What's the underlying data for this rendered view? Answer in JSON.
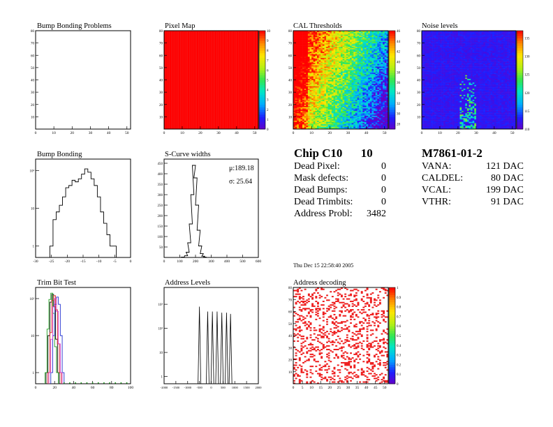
{
  "chip_summary": {
    "title": "Chip C10",
    "chip_number": "10",
    "rows": [
      {
        "label": "Dead Pixel:",
        "value": "0"
      },
      {
        "label": "Mask defects:",
        "value": "0"
      },
      {
        "label": "Dead Bumps:",
        "value": "0"
      },
      {
        "label": "Dead Trimbits:",
        "value": "0"
      },
      {
        "label": "Address Probl:",
        "value": "3482"
      }
    ]
  },
  "module_summary": {
    "title": "M7861-01-2",
    "rows": [
      {
        "label": "VANA:",
        "value": "121 DAC"
      },
      {
        "label": "CALDEL:",
        "value": "80 DAC"
      },
      {
        "label": "VCAL:",
        "value": "199 DAC"
      },
      {
        "label": "VTHR:",
        "value": "91 DAC"
      }
    ]
  },
  "timestamp": "Thu Dec 15 22:58:40 2005",
  "chart_data": [
    {
      "id": "bump-bonding-problems",
      "type": "heatmap",
      "title": "Bump Bonding Problems",
      "xlim": [
        0,
        52
      ],
      "ylim": [
        0,
        80
      ],
      "x_ticks": [
        "0",
        "10",
        "20",
        "30",
        "40",
        "50"
      ],
      "y_ticks": [
        "10",
        "20",
        "30",
        "40",
        "50",
        "60",
        "70",
        "80"
      ],
      "cells": "none"
    },
    {
      "id": "pixel-map",
      "type": "heatmap",
      "title": "Pixel Map",
      "xlim": [
        0,
        52
      ],
      "ylim": [
        0,
        80
      ],
      "x_ticks": [
        "0",
        "10",
        "20",
        "30",
        "40",
        "50"
      ],
      "y_ticks": [
        "10",
        "20",
        "30",
        "40",
        "50",
        "60",
        "70",
        "80"
      ],
      "uniform_value": 10,
      "zlim": [
        0,
        10
      ],
      "z_ticks": [
        "0",
        "1",
        "2",
        "3",
        "4",
        "5",
        "6",
        "7",
        "8",
        "9",
        "10"
      ]
    },
    {
      "id": "cal-thresholds",
      "type": "heatmap",
      "title": "CAL Thresholds",
      "xlim": [
        0,
        52
      ],
      "ylim": [
        0,
        80
      ],
      "x_ticks": [
        "0",
        "10",
        "20",
        "30",
        "40",
        "50"
      ],
      "y_ticks": [
        "10",
        "20",
        "30",
        "40",
        "50",
        "60",
        "70",
        "80"
      ],
      "zlim": [
        27,
        46
      ],
      "z_ticks": [
        "28",
        "30",
        "32",
        "34",
        "36",
        "38",
        "40",
        "42",
        "44",
        "46"
      ],
      "distribution": "high values (~40-46) in upper-left, decreasing to ~28-32 toward lower-right"
    },
    {
      "id": "noise-levels",
      "type": "heatmap",
      "title": "Noise levels",
      "xlim": [
        0,
        52
      ],
      "ylim": [
        0,
        80
      ],
      "x_ticks": [
        "0",
        "10",
        "20",
        "30",
        "40",
        "50"
      ],
      "y_ticks": [
        "10",
        "20",
        "30",
        "40",
        "50",
        "60",
        "70",
        "80"
      ],
      "zlim": [
        110,
        137
      ],
      "z_ticks": [
        "110",
        "115",
        "120",
        "125",
        "130",
        "135"
      ],
      "distribution": "mostly ~110-112, column cluster of higher values near x=20-28 at low y"
    },
    {
      "id": "bump-bonding",
      "type": "line",
      "title": "Bump Bonding",
      "log_y": true,
      "xlim": [
        -30,
        0
      ],
      "ylim": [
        0.5,
        200
      ],
      "x_ticks": [
        "-30",
        "-25",
        "-20",
        "-15",
        "-10",
        "-5",
        "0"
      ],
      "y_ticks": [
        "1",
        "10",
        "10²",
        "10³"
      ],
      "x": [
        -25,
        -24,
        -23,
        -22,
        -21,
        -20,
        -19,
        -18,
        -17,
        -16,
        -15,
        -14,
        -13,
        -12,
        -11,
        -10,
        -9,
        -8,
        -7,
        -6,
        -5
      ],
      "values": [
        1,
        5,
        8,
        12,
        20,
        35,
        40,
        55,
        50,
        60,
        80,
        110,
        90,
        60,
        40,
        20,
        8,
        4,
        2,
        1,
        1
      ]
    },
    {
      "id": "s-curve-widths",
      "type": "line",
      "title": "S-Curve widths",
      "xlim": [
        0,
        600
      ],
      "ylim": [
        0,
        470
      ],
      "x_ticks": [
        "0",
        "100",
        "200",
        "300",
        "400",
        "500",
        "600"
      ],
      "y_ticks": [
        "50",
        "100",
        "150",
        "200",
        "250",
        "300",
        "350",
        "400",
        "450"
      ],
      "x": [
        120,
        140,
        150,
        160,
        170,
        180,
        190,
        200,
        210,
        220,
        230,
        240,
        250,
        260,
        270
      ],
      "values": [
        2,
        8,
        25,
        70,
        160,
        300,
        440,
        380,
        250,
        130,
        55,
        18,
        6,
        2,
        0
      ],
      "stats": {
        "mu": "μ:189.18",
        "sigma": "σ: 25.64"
      }
    },
    {
      "id": "trim-bit-test",
      "type": "line",
      "title": "Trim Bit Test",
      "log_y": true,
      "xlim": [
        0,
        100
      ],
      "ylim": [
        0.5,
        200
      ],
      "x_ticks": [
        "0",
        "20",
        "40",
        "60",
        "80",
        "100"
      ],
      "y_ticks": [
        "1",
        "10",
        "10²",
        "10³"
      ],
      "series": [
        {
          "color": "#000000",
          "x": [
            12,
            14,
            16,
            18,
            20,
            22,
            24
          ],
          "values": [
            1,
            10,
            80,
            130,
            60,
            8,
            1
          ]
        },
        {
          "color": "#e02020",
          "x": [
            14,
            16,
            18,
            20,
            22,
            24,
            26
          ],
          "values": [
            1,
            12,
            90,
            120,
            50,
            6,
            1
          ]
        },
        {
          "color": "#20a020",
          "x": [
            11,
            13,
            15,
            17,
            19,
            21,
            23
          ],
          "values": [
            1,
            15,
            95,
            140,
            40,
            5,
            1
          ]
        },
        {
          "color": "#2030d0",
          "x": [
            17,
            19,
            21,
            23,
            25,
            27,
            29
          ],
          "values": [
            1,
            10,
            70,
            110,
            70,
            10,
            1
          ]
        },
        {
          "color": "#d040d0",
          "x": [
            15,
            17,
            19,
            21,
            23,
            25,
            27
          ],
          "values": [
            1,
            8,
            60,
            100,
            45,
            6,
            1
          ]
        }
      ],
      "green_markers_x": [
        30,
        36,
        42,
        48,
        54,
        60,
        66,
        72,
        78,
        84,
        90,
        96
      ]
    },
    {
      "id": "address-levels",
      "type": "line",
      "title": "Address Levels",
      "log_y": true,
      "xlim": [
        -2000,
        2000
      ],
      "ylim": [
        0.5,
        5000
      ],
      "x_ticks": [
        "-2000",
        "-1500",
        "-1000",
        "-500",
        "0",
        "500",
        "1000",
        "1500",
        "2000"
      ],
      "y_ticks": [
        "1",
        "10",
        "10²",
        "10³"
      ],
      "peaks_x": [
        -500,
        -150,
        50,
        250,
        450,
        650,
        820
      ],
      "peaks_h": [
        800,
        500,
        500,
        500,
        450,
        450,
        400
      ]
    },
    {
      "id": "address-decoding",
      "type": "heatmap",
      "title": "Address decoding",
      "xlim": [
        0,
        52
      ],
      "ylim": [
        0,
        80
      ],
      "x_ticks": [
        "0",
        "5",
        "10",
        "15",
        "20",
        "25",
        "30",
        "35",
        "40",
        "45",
        "50"
      ],
      "y_ticks": [
        "10",
        "20",
        "30",
        "40",
        "50",
        "60",
        "70",
        "80"
      ],
      "zlim": [
        0,
        1
      ],
      "z_ticks": [
        "0",
        "0.1",
        "0.2",
        "0.3",
        "0.4",
        "0.5",
        "0.6",
        "0.7",
        "0.8",
        "0.9",
        "1"
      ],
      "distribution": "random scattered red pixels (value 1) on white"
    }
  ]
}
